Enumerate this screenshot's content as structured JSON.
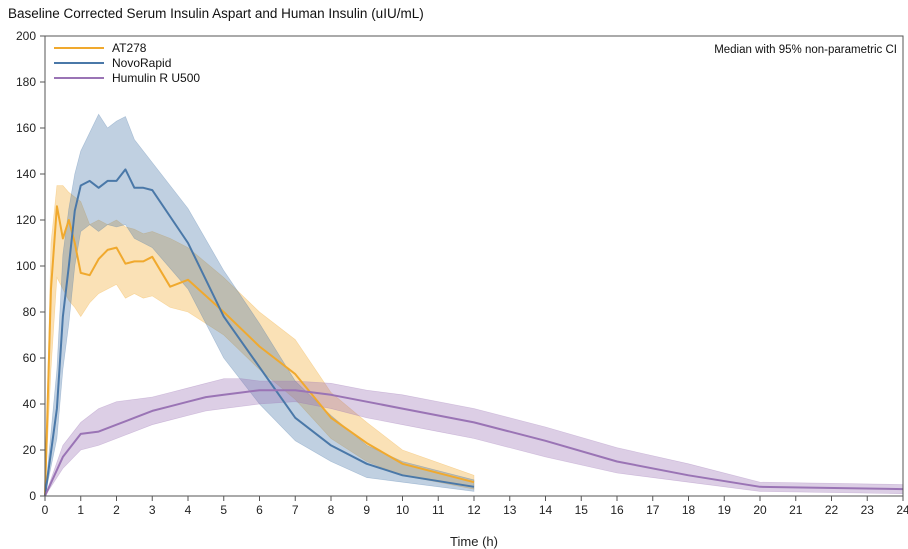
{
  "chart_data": {
    "type": "line",
    "title": "Baseline Corrected Serum Insulin Aspart and Human Insulin (uIU/mL)",
    "xlabel": "Time (h)",
    "ylabel": "",
    "xlim": [
      0,
      24
    ],
    "ylim": [
      0,
      200
    ],
    "x_ticks": [
      0,
      1,
      2,
      3,
      4,
      5,
      6,
      7,
      8,
      9,
      10,
      11,
      12,
      13,
      14,
      15,
      16,
      17,
      18,
      19,
      20,
      21,
      22,
      23,
      24
    ],
    "y_ticks": [
      0,
      20,
      40,
      60,
      80,
      100,
      120,
      140,
      160,
      180,
      200
    ],
    "annotation": "Median with 95% non-parametric CI",
    "legend_position": "top-left",
    "grid": false,
    "series": [
      {
        "name": "AT278",
        "color": "#f0a92e",
        "x": [
          0,
          0.167,
          0.333,
          0.5,
          0.667,
          0.833,
          1,
          1.25,
          1.5,
          1.75,
          2,
          2.25,
          2.5,
          2.75,
          3,
          3.5,
          4,
          5,
          6,
          7,
          8,
          9,
          10,
          12
        ],
        "y": [
          0,
          90,
          126,
          112,
          120,
          110,
          97,
          96,
          103,
          107,
          108,
          101,
          102,
          102,
          104,
          91,
          94,
          80,
          65,
          53,
          34,
          23,
          14,
          6
        ],
        "lower": [
          0,
          55,
          95,
          90,
          85,
          82,
          78,
          84,
          88,
          90,
          92,
          86,
          88,
          86,
          87,
          82,
          80,
          70,
          55,
          42,
          25,
          15,
          9,
          3
        ],
        "upper": [
          0,
          110,
          135,
          135,
          132,
          130,
          128,
          118,
          120,
          118,
          120,
          117,
          116,
          114,
          115,
          112,
          108,
          95,
          80,
          68,
          45,
          32,
          20,
          9
        ]
      },
      {
        "name": "NovoRapid",
        "color": "#4a78a8",
        "x": [
          0,
          0.333,
          0.5,
          0.667,
          0.833,
          1,
          1.25,
          1.5,
          1.75,
          2,
          2.25,
          2.5,
          2.75,
          3,
          4,
          5,
          6,
          7,
          8,
          9,
          10,
          12
        ],
        "y": [
          0,
          38,
          78,
          100,
          124,
          135,
          137,
          134,
          137,
          137,
          142,
          134,
          134,
          133,
          110,
          78,
          56,
          34,
          22,
          14,
          9,
          4
        ],
        "lower": [
          0,
          25,
          55,
          75,
          100,
          115,
          118,
          115,
          118,
          117,
          118,
          112,
          110,
          108,
          90,
          60,
          40,
          24,
          15,
          8,
          6,
          2
        ],
        "upper": [
          0,
          55,
          105,
          125,
          140,
          150,
          158,
          166,
          160,
          163,
          165,
          155,
          150,
          145,
          125,
          98,
          75,
          50,
          35,
          22,
          15,
          7
        ]
      },
      {
        "name": "Humulin R U500",
        "color": "#9a74b5",
        "x": [
          0,
          0.5,
          1,
          1.5,
          2,
          2.5,
          3,
          3.5,
          4,
          4.5,
          5,
          5.5,
          6,
          7,
          8,
          9,
          10,
          11,
          12,
          14,
          16,
          18,
          20,
          24
        ],
        "y": [
          0,
          17,
          27,
          28,
          31,
          34,
          37,
          39,
          41,
          43,
          44,
          45,
          46,
          46,
          44,
          41,
          38,
          35,
          32,
          24,
          15,
          9,
          4,
          3
        ],
        "lower": [
          0,
          12,
          20,
          22,
          25,
          28,
          31,
          33,
          35,
          37,
          38,
          39,
          40,
          41,
          38,
          34,
          31,
          28,
          25,
          17,
          10,
          6,
          2,
          1
        ],
        "upper": [
          0,
          22,
          32,
          38,
          41,
          42,
          43,
          45,
          47,
          49,
          51,
          51,
          50,
          50,
          49,
          46,
          44,
          41,
          38,
          30,
          21,
          14,
          6,
          5
        ]
      }
    ]
  }
}
